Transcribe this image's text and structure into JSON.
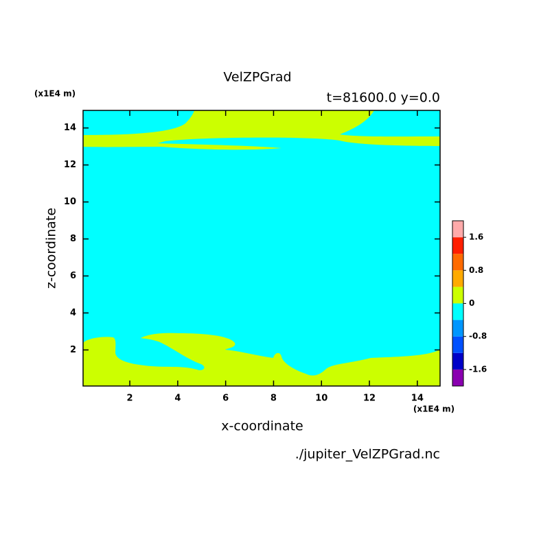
{
  "chart_data": {
    "type": "contour",
    "title": "VelZPGrad",
    "subtitle": "t=81600.0 y=0.0",
    "x_label": "x-coordinate",
    "y_label": "z-coordinate",
    "x_unit": "(x1E4 m)",
    "y_unit": "(x1E4 m)",
    "source": "./jupiter_VelZPGrad.nc",
    "xlim": [
      0.05,
      14.95
    ],
    "ylim": [
      0.05,
      14.95
    ],
    "xticks": [
      2,
      4,
      6,
      8,
      10,
      12,
      14
    ],
    "yticks": [
      2,
      4,
      6,
      8,
      10,
      12,
      14
    ],
    "colorbar": {
      "levels": [
        -2,
        -1.6,
        -1.2,
        -0.8,
        -0.4,
        0,
        0.4,
        0.8,
        1.2,
        1.6,
        2
      ],
      "colors": [
        "#8a00b0",
        "#0000c8",
        "#0050ff",
        "#0096ff",
        "#00ffff",
        "#ccff00",
        "#ffaa00",
        "#ff6a00",
        "#ff1e00",
        "#ffaaaa"
      ],
      "ticks": [
        -1.6,
        -0.8,
        0,
        0.8,
        1.6
      ]
    }
  }
}
